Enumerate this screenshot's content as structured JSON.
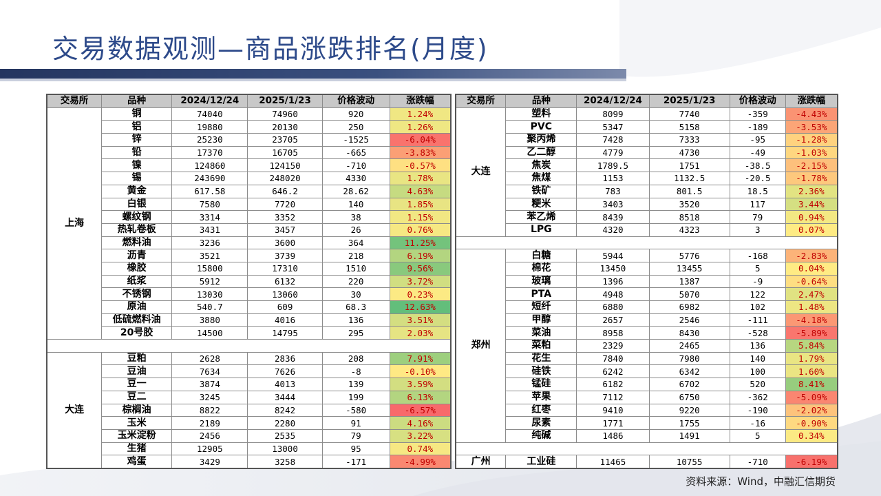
{
  "title": "交易数据观测—商品涨跌排名(月度)",
  "source": "资料来源：Wind，中融汇信期货",
  "headers": [
    "交易所",
    "品种",
    "2024/12/24",
    "2025/1/23",
    "价格波动",
    "涨跌幅"
  ],
  "left_groups": [
    {
      "exchange": "上海",
      "rows": [
        {
          "name": "铜",
          "p1": "74040",
          "p2": "74960",
          "diff": "920",
          "chg": "1.24%"
        },
        {
          "name": "铝",
          "p1": "19880",
          "p2": "20130",
          "diff": "250",
          "chg": "1.26%"
        },
        {
          "name": "锌",
          "p1": "25230",
          "p2": "23705",
          "diff": "-1525",
          "chg": "-6.04%"
        },
        {
          "name": "铅",
          "p1": "17370",
          "p2": "16705",
          "diff": "-665",
          "chg": "-3.83%"
        },
        {
          "name": "镍",
          "p1": "124860",
          "p2": "124150",
          "diff": "-710",
          "chg": "-0.57%"
        },
        {
          "name": "锡",
          "p1": "243690",
          "p2": "248020",
          "diff": "4330",
          "chg": "1.78%"
        },
        {
          "name": "黄金",
          "p1": "617.58",
          "p2": "646.2",
          "diff": "28.62",
          "chg": "4.63%"
        },
        {
          "name": "白银",
          "p1": "7580",
          "p2": "7720",
          "diff": "140",
          "chg": "1.85%"
        },
        {
          "name": "螺纹钢",
          "p1": "3314",
          "p2": "3352",
          "diff": "38",
          "chg": "1.15%"
        },
        {
          "name": "热轧卷板",
          "p1": "3431",
          "p2": "3457",
          "diff": "26",
          "chg": "0.76%"
        },
        {
          "name": "燃料油",
          "p1": "3236",
          "p2": "3600",
          "diff": "364",
          "chg": "11.25%"
        },
        {
          "name": "沥青",
          "p1": "3521",
          "p2": "3739",
          "diff": "218",
          "chg": "6.19%"
        },
        {
          "name": "橡胶",
          "p1": "15800",
          "p2": "17310",
          "diff": "1510",
          "chg": "9.56%"
        },
        {
          "name": "纸浆",
          "p1": "5912",
          "p2": "6132",
          "diff": "220",
          "chg": "3.72%"
        },
        {
          "name": "不锈钢",
          "p1": "13030",
          "p2": "13060",
          "diff": "30",
          "chg": "0.23%"
        },
        {
          "name": "原油",
          "p1": "540.7",
          "p2": "609",
          "diff": "68.3",
          "chg": "12.63%"
        },
        {
          "name": "低硫燃料油",
          "p1": "3880",
          "p2": "4016",
          "diff": "136",
          "chg": "3.51%"
        },
        {
          "name": "20号胶",
          "p1": "14500",
          "p2": "14795",
          "diff": "295",
          "chg": "2.03%"
        }
      ]
    },
    {
      "exchange": "大连",
      "rows": [
        {
          "name": "豆粕",
          "p1": "2628",
          "p2": "2836",
          "diff": "208",
          "chg": "7.91%"
        },
        {
          "name": "豆油",
          "p1": "7634",
          "p2": "7626",
          "diff": "-8",
          "chg": "-0.10%"
        },
        {
          "name": "豆一",
          "p1": "3874",
          "p2": "4013",
          "diff": "139",
          "chg": "3.59%"
        },
        {
          "name": "豆二",
          "p1": "3245",
          "p2": "3444",
          "diff": "199",
          "chg": "6.13%"
        },
        {
          "name": "棕榈油",
          "p1": "8822",
          "p2": "8242",
          "diff": "-580",
          "chg": "-6.57%"
        },
        {
          "name": "玉米",
          "p1": "2189",
          "p2": "2280",
          "diff": "91",
          "chg": "4.16%"
        },
        {
          "name": "玉米淀粉",
          "p1": "2456",
          "p2": "2535",
          "diff": "79",
          "chg": "3.22%"
        },
        {
          "name": "生猪",
          "p1": "12905",
          "p2": "13000",
          "diff": "95",
          "chg": "0.74%"
        },
        {
          "name": "鸡蛋",
          "p1": "3429",
          "p2": "3258",
          "diff": "-171",
          "chg": "-4.99%"
        }
      ]
    }
  ],
  "right_groups": [
    {
      "exchange": "大连",
      "rows": [
        {
          "name": "塑料",
          "p1": "8099",
          "p2": "7740",
          "diff": "-359",
          "chg": "-4.43%"
        },
        {
          "name": "PVC",
          "p1": "5347",
          "p2": "5158",
          "diff": "-189",
          "chg": "-3.53%"
        },
        {
          "name": "聚丙烯",
          "p1": "7428",
          "p2": "7333",
          "diff": "-95",
          "chg": "-1.28%"
        },
        {
          "name": "乙二醇",
          "p1": "4779",
          "p2": "4730",
          "diff": "-49",
          "chg": "-1.03%"
        },
        {
          "name": "焦炭",
          "p1": "1789.5",
          "p2": "1751",
          "diff": "-38.5",
          "chg": "-2.15%"
        },
        {
          "name": "焦煤",
          "p1": "1153",
          "p2": "1132.5",
          "diff": "-20.5",
          "chg": "-1.78%"
        },
        {
          "name": "铁矿",
          "p1": "783",
          "p2": "801.5",
          "diff": "18.5",
          "chg": "2.36%"
        },
        {
          "name": "粳米",
          "p1": "3403",
          "p2": "3520",
          "diff": "117",
          "chg": "3.44%"
        },
        {
          "name": "苯乙烯",
          "p1": "8439",
          "p2": "8518",
          "diff": "79",
          "chg": "0.94%"
        },
        {
          "name": "LPG",
          "p1": "4320",
          "p2": "4323",
          "diff": "3",
          "chg": "0.07%"
        }
      ]
    },
    {
      "exchange": "郑州",
      "rows": [
        {
          "name": "白糖",
          "p1": "5944",
          "p2": "5776",
          "diff": "-168",
          "chg": "-2.83%"
        },
        {
          "name": "棉花",
          "p1": "13450",
          "p2": "13455",
          "diff": "5",
          "chg": "0.04%"
        },
        {
          "name": "玻璃",
          "p1": "1396",
          "p2": "1387",
          "diff": "-9",
          "chg": "-0.64%"
        },
        {
          "name": "PTA",
          "p1": "4948",
          "p2": "5070",
          "diff": "122",
          "chg": "2.47%"
        },
        {
          "name": "短纤",
          "p1": "6880",
          "p2": "6982",
          "diff": "102",
          "chg": "1.48%"
        },
        {
          "name": "甲醇",
          "p1": "2657",
          "p2": "2546",
          "diff": "-111",
          "chg": "-4.18%"
        },
        {
          "name": "菜油",
          "p1": "8958",
          "p2": "8430",
          "diff": "-528",
          "chg": "-5.89%"
        },
        {
          "name": "菜粕",
          "p1": "2329",
          "p2": "2465",
          "diff": "136",
          "chg": "5.84%"
        },
        {
          "name": "花生",
          "p1": "7840",
          "p2": "7980",
          "diff": "140",
          "chg": "1.79%"
        },
        {
          "name": "硅铁",
          "p1": "6242",
          "p2": "6342",
          "diff": "100",
          "chg": "1.60%"
        },
        {
          "name": "锰硅",
          "p1": "6182",
          "p2": "6702",
          "diff": "520",
          "chg": "8.41%"
        },
        {
          "name": "苹果",
          "p1": "7112",
          "p2": "6750",
          "diff": "-362",
          "chg": "-5.09%"
        },
        {
          "name": "红枣",
          "p1": "9410",
          "p2": "9220",
          "diff": "-190",
          "chg": "-2.02%"
        },
        {
          "name": "尿素",
          "p1": "1771",
          "p2": "1755",
          "diff": "-16",
          "chg": "-0.90%"
        },
        {
          "name": "纯碱",
          "p1": "1486",
          "p2": "1491",
          "diff": "5",
          "chg": "0.34%"
        }
      ]
    },
    {
      "exchange": "广州",
      "rows": [
        {
          "name": "工业硅",
          "p1": "11465",
          "p2": "10755",
          "diff": "-710",
          "chg": "-6.19%"
        }
      ]
    }
  ],
  "colors": {
    "title": "#2d4a8a",
    "header_bg": "#c8c8c8",
    "scale_min": "#f8696b",
    "scale_mid": "#ffeb84",
    "scale_max": "#63be7b",
    "chg_text_neg": "#c00000",
    "chg_text_pos": "#c00000"
  }
}
